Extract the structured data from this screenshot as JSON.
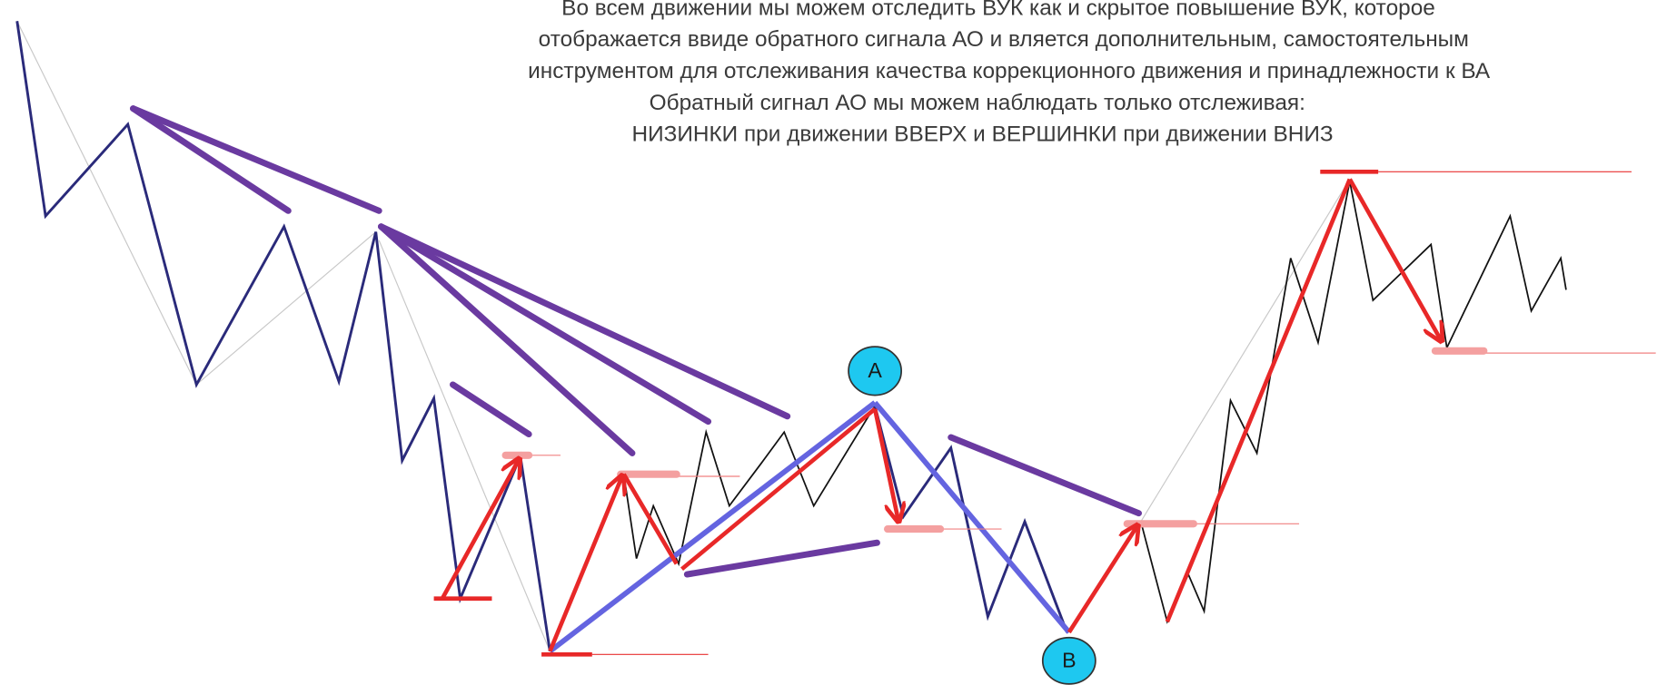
{
  "text": {
    "lines": [
      "Во всем движении мы можем отследить ВУК как и скрытое повышение ВУК, которое",
      "отображается ввиде обратного сигнала АО и вляется дополнительным, самостоятельным",
      "инструментом для отслеживания качества коррекционного движения и принадлежности к ВА",
      "Обратный сигнал АО мы можем наблюдать только отслеживая:",
      "НИЗИНКИ при движении ВВЕРХ и ВЕРШИНКИ при движении ВНИЗ"
    ]
  },
  "labels": {
    "a": "A",
    "b": "B"
  }
}
